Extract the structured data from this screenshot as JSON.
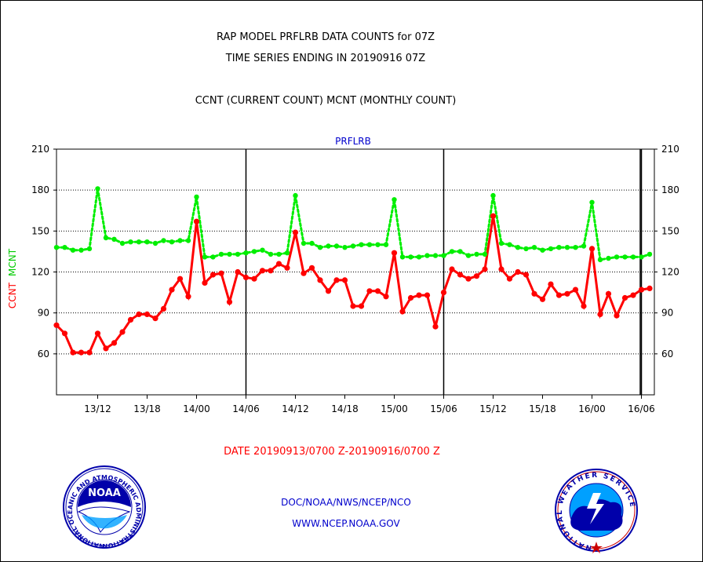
{
  "header": {
    "title_line1": "RAP MODEL PRFLRB DATA COUNTS for 07Z",
    "title_line2": "TIME SERIES ENDING IN 20190916 07Z",
    "subtitle": "CCNT (CURRENT COUNT) MCNT (MONTHLY COUNT)"
  },
  "footer": {
    "date_range": "DATE 20190913/0700 Z-20190916/0700 Z",
    "org_line": "DOC/NOAA/NWS/NCEP/NCO",
    "url_line": "WWW.NCEP.NOAA.GOV",
    "noaa_logo_text": "NOAA",
    "noaa_ring_text": "NATIONAL OCEANIC AND ATMOSPHERIC ADMINISTRATION • U.S. DEPARTMENT OF COMMERCE •",
    "nws_ring_text": "NATIONAL WEATHER SERVICE"
  },
  "colors": {
    "ccnt": "#ff0000",
    "mcnt": "#00ee00",
    "footer_text": "#0000cc",
    "axis": "#000000"
  },
  "chart_data": {
    "type": "line",
    "title": "PRFLRB",
    "ylabel_parts": [
      "CCNT",
      "MCNT"
    ],
    "ylim": [
      30,
      210
    ],
    "yticks": [
      60,
      90,
      120,
      150,
      180,
      210
    ],
    "grid": true,
    "x_tick_labels": [
      "13/12",
      "13/18",
      "14/00",
      "14/06",
      "14/12",
      "14/18",
      "15/00",
      "15/06",
      "15/12",
      "15/18",
      "16/00",
      "16/06"
    ],
    "day_boundaries": [
      "14/06",
      "15/06",
      "16/06"
    ],
    "series": [
      {
        "name": "CCNT",
        "style": "solid",
        "values": [
          81,
          75,
          61,
          61,
          61,
          75,
          64,
          68,
          76,
          85,
          89,
          89,
          86,
          93,
          107,
          115,
          102,
          157,
          112,
          118,
          119,
          98,
          120,
          116,
          115,
          121,
          121,
          126,
          123,
          149,
          119,
          123,
          114,
          106,
          114,
          114,
          95,
          95,
          106,
          106,
          102,
          134,
          91,
          101,
          103,
          103,
          80,
          105,
          122,
          118,
          115,
          117,
          122,
          161,
          122,
          115,
          120,
          118,
          104,
          100,
          111,
          103,
          104,
          107,
          95,
          137,
          89,
          104,
          88,
          101,
          103,
          107,
          108
        ]
      },
      {
        "name": "MCNT",
        "style": "dotted",
        "values": [
          138,
          138,
          136,
          136,
          137,
          181,
          145,
          144,
          141,
          142,
          142,
          142,
          141,
          143,
          142,
          143,
          143,
          175,
          131,
          131,
          133,
          133,
          133,
          134,
          135,
          136,
          133,
          133,
          134,
          176,
          141,
          141,
          138,
          139,
          139,
          138,
          139,
          140,
          140,
          140,
          140,
          173,
          131,
          131,
          131,
          132,
          132,
          132,
          135,
          135,
          132,
          133,
          133,
          176,
          141,
          140,
          138,
          137,
          138,
          136,
          137,
          138,
          138,
          138,
          139,
          171,
          129,
          130,
          131,
          131,
          131,
          131,
          133
        ]
      }
    ]
  }
}
